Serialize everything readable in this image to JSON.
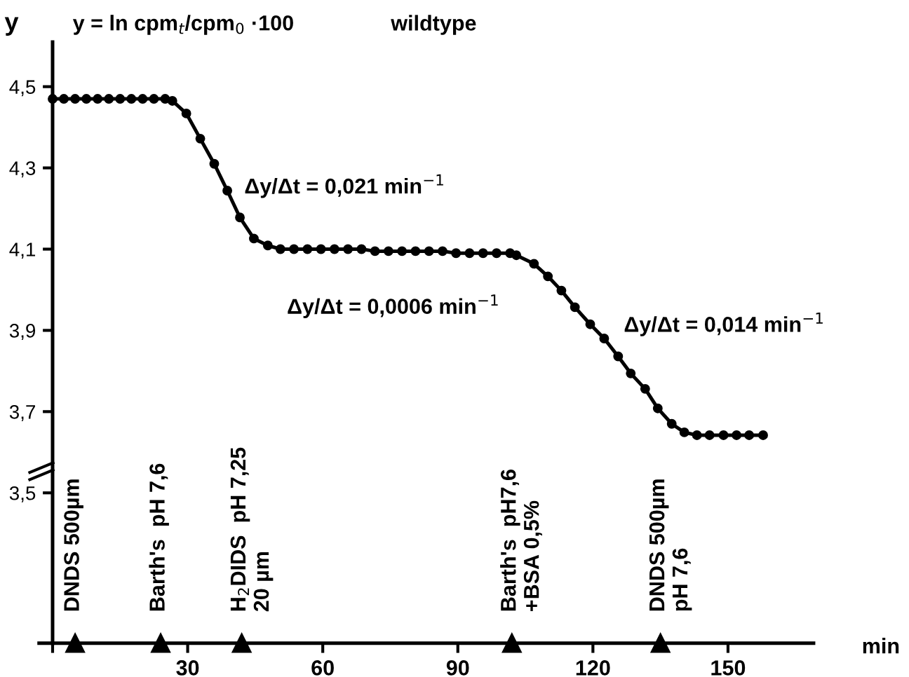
{
  "chart_data": {
    "type": "line",
    "title": "y = ln cpm$_{t}$/cpm$_{0}$ ·100",
    "subtitle": "wildtype",
    "xlabel": "min",
    "ylabel": "y",
    "x": [
      0,
      2.5,
      5,
      7.5,
      10,
      12.5,
      15,
      17.5,
      20,
      22.5,
      25,
      26.6,
      29.7,
      32.8,
      35.9,
      38.8,
      41.6,
      44.7,
      47.8,
      50.6,
      53.6,
      56.6,
      59.6,
      62.6,
      65.6,
      68.6,
      71.6,
      74.6,
      77.6,
      80.6,
      83.6,
      86.6,
      89.6,
      92.6,
      95.6,
      98.6,
      101.6,
      103,
      106.9,
      110,
      113,
      116,
      119.4,
      122.5,
      125.6,
      128.4,
      131.6,
      134.4,
      137.5,
      140.3,
      143.1,
      145.9,
      149,
      151.9,
      154.7,
      157.8
    ],
    "series": [
      {
        "color": "#000000",
        "values": [
          4.47,
          4.47,
          4.47,
          4.47,
          4.47,
          4.47,
          4.47,
          4.47,
          4.47,
          4.47,
          4.47,
          4.465,
          4.434,
          4.372,
          4.31,
          4.244,
          4.178,
          4.126,
          4.109,
          4.1,
          4.1,
          4.1,
          4.1,
          4.1,
          4.1,
          4.1,
          4.095,
          4.095,
          4.095,
          4.095,
          4.095,
          4.095,
          4.09,
          4.09,
          4.09,
          4.09,
          4.09,
          4.085,
          4.064,
          4.033,
          3.998,
          3.957,
          3.915,
          3.88,
          3.836,
          3.794,
          3.756,
          3.708,
          3.67,
          3.649,
          3.642,
          3.642,
          3.642,
          3.642,
          3.642,
          3.642
        ]
      }
    ],
    "xlim": [
      -3,
      169
    ],
    "ylim": [
      3.13,
      4.61
    ],
    "xticks": [
      {
        "value": 0,
        "label": null
      },
      30,
      60,
      90,
      120,
      150
    ],
    "yticks": [
      {
        "value": 3.5,
        "label": "3,5"
      },
      {
        "value": 3.7,
        "label": "3,7"
      },
      {
        "value": 3.9,
        "label": "3,9"
      },
      {
        "value": 4.1,
        "label": "4,1"
      },
      {
        "value": 4.3,
        "label": "4,3"
      },
      {
        "value": 4.5,
        "label": "4,5"
      }
    ],
    "marker": "circle",
    "line_style": "solid",
    "grid": false,
    "legend": false,
    "annotations": [
      "Δy/Δt = 0,021 min$^{−1}$",
      "Δy/Δt = 0,0006 min$^{−1}$",
      "Δy/Δt = 0,014 min$^{−1}$",
      {
        "text": "DNDS 500µm",
        "x": 5,
        "y": 3.13
      },
      {
        "text": "Barth's  pH 7,6",
        "x": 24,
        "y": 3.13
      },
      {
        "text": "H$_{2}$DIDS  pH 7,25\n20 µm",
        "x": 42,
        "y": 3.13
      },
      {
        "text": "Barth's  pH7,6\n+BSA 0,5%",
        "x": 102,
        "y": 3.13
      },
      {
        "text": "DNDS 500µm\npH 7,6",
        "x": 135,
        "y": 3.13
      }
    ]
  }
}
